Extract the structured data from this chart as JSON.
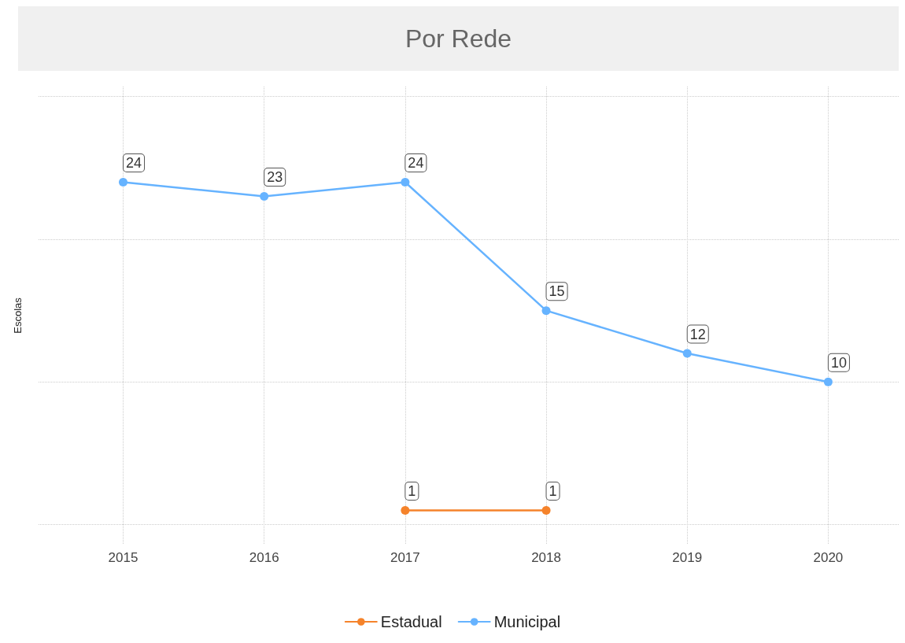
{
  "chart_data": {
    "type": "line",
    "title": "Por Rede",
    "ylabel": "Escolas",
    "x": [
      2015,
      2016,
      2017,
      2018,
      2019,
      2020
    ],
    "series": [
      {
        "name": "Estadual",
        "color": "#f5832b",
        "x": [
          2017,
          2018
        ],
        "values": [
          1,
          1
        ]
      },
      {
        "name": "Municipal",
        "color": "#66b3ff",
        "values": [
          24,
          23,
          24,
          15,
          12,
          10
        ]
      }
    ],
    "xlim": [
      2014.4,
      2020.5
    ],
    "xticks": [
      2015,
      2016,
      2017,
      2018,
      2019,
      2020
    ],
    "ylim": [
      -1.4,
      30.7
    ],
    "yticks": [
      {
        "value": 0,
        "label": null
      },
      {
        "value": 10,
        "label": null
      },
      {
        "value": 20,
        "label": null
      },
      {
        "value": 30,
        "label": null
      }
    ],
    "tick_labels": "x",
    "grid": true,
    "legend": "bottom",
    "marker": "circle",
    "line_style": "solid",
    "data_labels": true
  }
}
